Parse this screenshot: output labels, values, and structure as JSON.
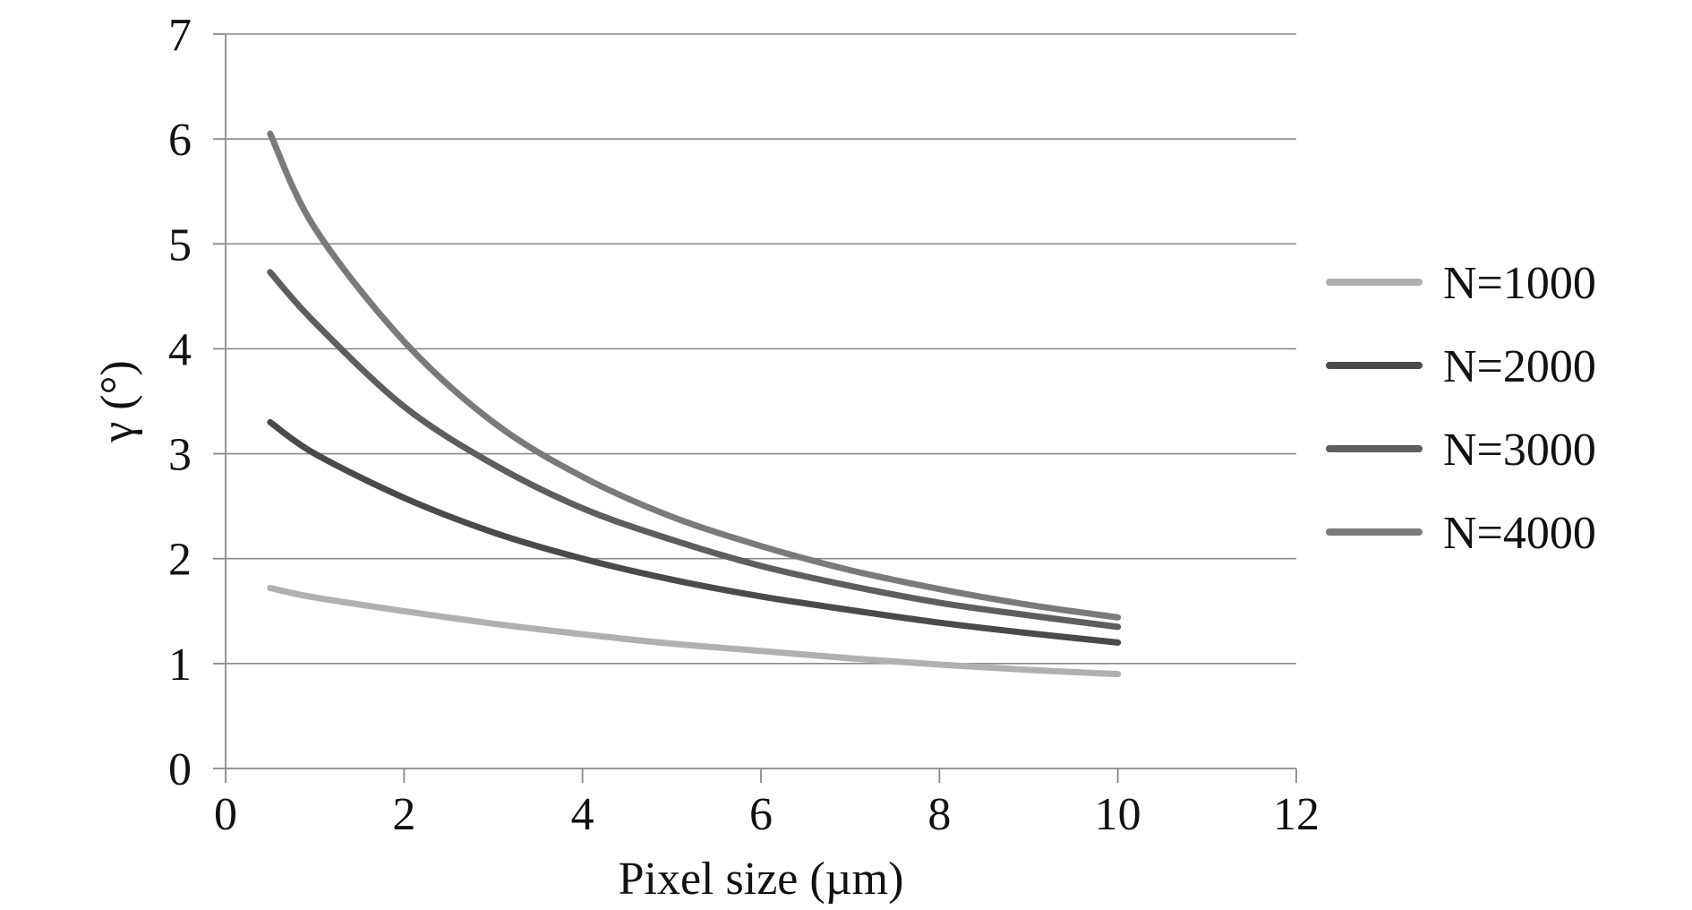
{
  "chart_data": {
    "type": "line",
    "title": "",
    "xlabel": "Pixel size (µm)",
    "ylabel": "γ (°)",
    "xlim": [
      0,
      12
    ],
    "ylim": [
      0,
      7
    ],
    "xticks": [
      0,
      2,
      4,
      6,
      8,
      10,
      12
    ],
    "yticks": [
      0,
      1,
      2,
      3,
      4,
      5,
      6,
      7
    ],
    "grid": "horizontal",
    "legend_position": "right",
    "x": [
      0.5,
      1,
      2,
      3,
      4,
      5,
      6,
      7,
      8,
      9,
      10
    ],
    "series": [
      {
        "name": "N=1000",
        "color": "#b0b0b0",
        "values": [
          1.72,
          1.63,
          1.5,
          1.38,
          1.28,
          1.19,
          1.12,
          1.05,
          0.99,
          0.94,
          0.9
        ]
      },
      {
        "name": "N=2000",
        "color": "#4a4a4a",
        "values": [
          3.3,
          3.0,
          2.58,
          2.25,
          2.0,
          1.8,
          1.64,
          1.51,
          1.39,
          1.29,
          1.2
        ]
      },
      {
        "name": "N=3000",
        "color": "#5e5e5e",
        "values": [
          4.73,
          4.25,
          3.45,
          2.9,
          2.48,
          2.18,
          1.93,
          1.74,
          1.58,
          1.46,
          1.35
        ]
      },
      {
        "name": "N=4000",
        "color": "#7a7a7a",
        "values": [
          6.05,
          5.15,
          4.07,
          3.3,
          2.78,
          2.4,
          2.12,
          1.89,
          1.71,
          1.56,
          1.44
        ]
      }
    ]
  }
}
